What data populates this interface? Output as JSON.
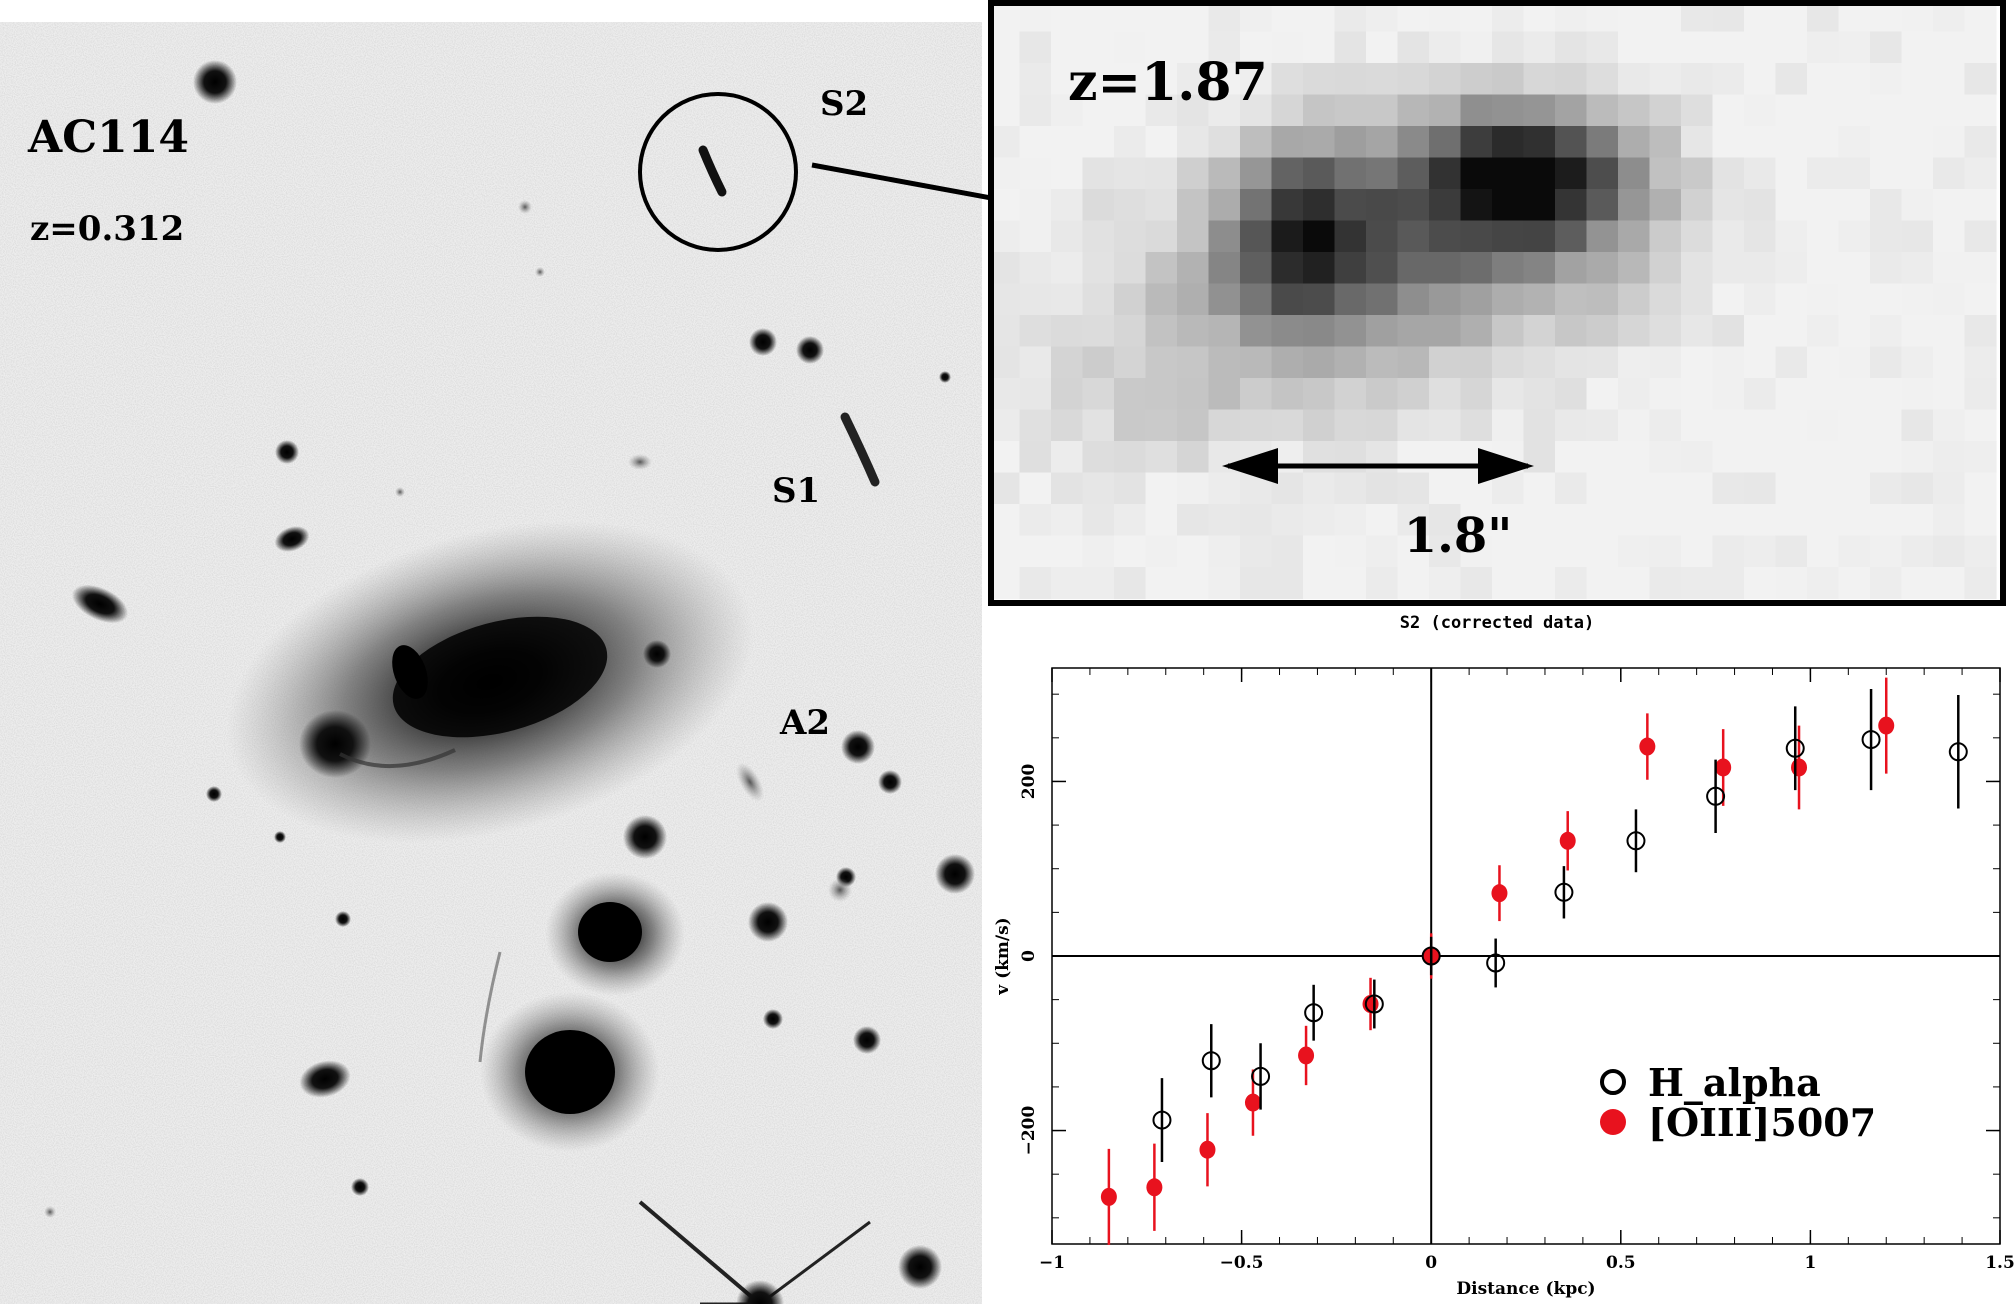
{
  "sky_image": {
    "cluster_name": "AC114",
    "cluster_redshift": "z=0.312",
    "labels": [
      "S2",
      "S1",
      "A2"
    ]
  },
  "zoom_panel": {
    "redshift": "z=1.87",
    "scale_label": "1.8\"",
    "caption": "S2 (corrected data)"
  },
  "chart_data": {
    "type": "scatter",
    "title": "",
    "xlabel": "Distance (kpc)",
    "ylabel": "v (km/s)",
    "xlim": [
      -1,
      1.5
    ],
    "ylim": [
      -330,
      330
    ],
    "x_ticks": [
      -1,
      -0.5,
      0,
      0.5,
      1,
      1.5
    ],
    "x_tick_labels": [
      "−1",
      "−0.5",
      "0",
      "0.5",
      "1",
      "1.5"
    ],
    "y_ticks": [
      -200,
      0,
      200
    ],
    "y_tick_labels": [
      "−200",
      "0",
      "200"
    ],
    "legend_position": "lower-right",
    "series": [
      {
        "name": "H_alpha",
        "marker": "open-circle",
        "color": "#000000",
        "points": [
          {
            "x": -0.71,
            "y": -188,
            "err": 48
          },
          {
            "x": -0.58,
            "y": -120,
            "err": 42
          },
          {
            "x": -0.45,
            "y": -138,
            "err": 38
          },
          {
            "x": -0.31,
            "y": -65,
            "err": 32
          },
          {
            "x": -0.15,
            "y": -55,
            "err": 28
          },
          {
            "x": 0.0,
            "y": 0,
            "err": 22
          },
          {
            "x": 0.17,
            "y": -8,
            "err": 28
          },
          {
            "x": 0.35,
            "y": 73,
            "err": 30
          },
          {
            "x": 0.54,
            "y": 132,
            "err": 36
          },
          {
            "x": 0.75,
            "y": 183,
            "err": 42
          },
          {
            "x": 0.96,
            "y": 238,
            "err": 48
          },
          {
            "x": 1.16,
            "y": 248,
            "err": 58
          },
          {
            "x": 1.39,
            "y": 234,
            "err": 65
          }
        ]
      },
      {
        "name": "[OIII]5007",
        "marker": "filled-circle",
        "color": "#e8121e",
        "points": [
          {
            "x": -0.85,
            "y": -276,
            "err": 55
          },
          {
            "x": -0.73,
            "y": -265,
            "err": 50
          },
          {
            "x": -0.59,
            "y": -222,
            "err": 42
          },
          {
            "x": -0.47,
            "y": -168,
            "err": 38
          },
          {
            "x": -0.33,
            "y": -114,
            "err": 34
          },
          {
            "x": -0.16,
            "y": -55,
            "err": 30
          },
          {
            "x": 0.0,
            "y": 0,
            "err": 26
          },
          {
            "x": 0.18,
            "y": 72,
            "err": 32
          },
          {
            "x": 0.36,
            "y": 132,
            "err": 34
          },
          {
            "x": 0.57,
            "y": 240,
            "err": 38
          },
          {
            "x": 0.77,
            "y": 216,
            "err": 44
          },
          {
            "x": 0.97,
            "y": 216,
            "err": 48
          },
          {
            "x": 1.2,
            "y": 264,
            "err": 55
          }
        ]
      }
    ]
  }
}
